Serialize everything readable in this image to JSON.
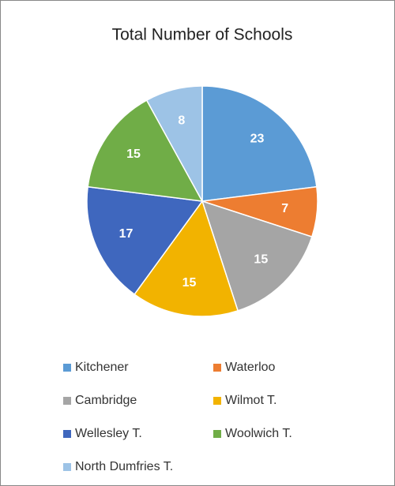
{
  "chart_data": {
    "type": "pie",
    "title": "Total Number of Schools",
    "categories": [
      "Kitchener",
      "Waterloo",
      "Cambridge",
      "Wilmot T.",
      "Wellesley T.",
      "Woolwich T.",
      "North Dumfries T."
    ],
    "values": [
      23,
      7,
      15,
      15,
      17,
      15,
      8
    ],
    "colors": [
      "#5b9bd5",
      "#ed7d31",
      "#a5a5a5",
      "#f2b300",
      "#3f67be",
      "#70ad47",
      "#9dc3e6"
    ],
    "legend": "bottom"
  }
}
